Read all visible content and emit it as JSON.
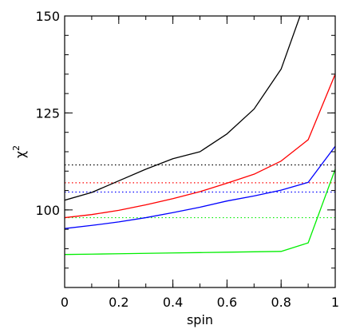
{
  "chart_data": {
    "type": "line",
    "xlabel": "spin",
    "ylabel_base": "χ",
    "ylabel_sup": "2",
    "xlim": [
      0,
      1
    ],
    "ylim": [
      80,
      150
    ],
    "x_ticks": [
      {
        "value": 0,
        "label": "0"
      },
      {
        "value": 0.2,
        "label": "0.2"
      },
      {
        "value": 0.4,
        "label": "0.4"
      },
      {
        "value": 0.6,
        "label": "0.6"
      },
      {
        "value": 0.8,
        "label": "0.8"
      },
      {
        "value": 1,
        "label": "1"
      }
    ],
    "y_ticks": [
      {
        "value": 100,
        "label": "100"
      },
      {
        "value": 125,
        "label": "125"
      },
      {
        "value": 150,
        "label": "150"
      }
    ],
    "x_minor_step": 0.1,
    "y_minor_step": 5,
    "grid": false,
    "series": [
      {
        "color": "#000000",
        "x": [
          0,
          0.1,
          0.2,
          0.3,
          0.4,
          0.5,
          0.6,
          0.7,
          0.8,
          0.87
        ],
        "y": [
          102.5,
          104.5,
          107.5,
          110.5,
          113.2,
          115,
          119.6,
          126,
          136.3,
          150
        ]
      },
      {
        "color": "#ff0000",
        "x": [
          0,
          0.1,
          0.2,
          0.3,
          0.4,
          0.5,
          0.6,
          0.7,
          0.8,
          0.9,
          1.0
        ],
        "y": [
          98,
          98.8,
          99.9,
          101.3,
          102.9,
          104.7,
          106.9,
          109.2,
          112.6,
          118.1,
          135
        ]
      },
      {
        "color": "#0000ff",
        "x": [
          0,
          0.1,
          0.2,
          0.3,
          0.4,
          0.5,
          0.6,
          0.7,
          0.8,
          0.9,
          1.0
        ],
        "y": [
          95.2,
          96,
          96.9,
          98,
          99.3,
          100.7,
          102.3,
          103.6,
          105.1,
          107.1,
          116.4
        ]
      },
      {
        "color": "#00ee00",
        "x": [
          0,
          0.1,
          0.2,
          0.3,
          0.4,
          0.5,
          0.6,
          0.7,
          0.8,
          0.9,
          1.0
        ],
        "y": [
          88.5,
          88.6,
          88.7,
          88.8,
          88.9,
          89,
          89.1,
          89.2,
          89.3,
          91.5,
          110.5
        ]
      }
    ],
    "reference_lines": [
      {
        "color": "#000000",
        "y": 111.6
      },
      {
        "color": "#ff0000",
        "y": 107
      },
      {
        "color": "#0000ff",
        "y": 104.6
      },
      {
        "color": "#00ee00",
        "y": 98
      }
    ]
  }
}
